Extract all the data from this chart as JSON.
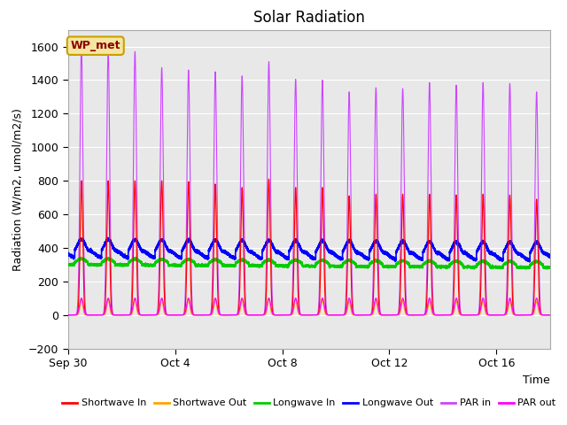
{
  "title": "Solar Radiation",
  "ylabel": "Radiation (W/m2, umol/m2/s)",
  "xlabel": "Time",
  "ylim": [
    -200,
    1700
  ],
  "yticks": [
    -200,
    0,
    200,
    400,
    600,
    800,
    1000,
    1200,
    1400,
    1600
  ],
  "annotation": "WP_met",
  "x_tick_labels": [
    "Sep 30",
    "Oct 4",
    "Oct 8",
    "Oct 12",
    "Oct 16"
  ],
  "x_tick_pos": [
    0,
    4,
    8,
    12,
    16
  ],
  "xlim": [
    0,
    18
  ],
  "colors": {
    "shortwave_in": "#ff0000",
    "shortwave_out": "#ffa500",
    "longwave_in": "#00cc00",
    "longwave_out": "#0000ff",
    "par_in": "#cc44ff",
    "par_out": "#ff00ff"
  },
  "legend": [
    {
      "label": "Shortwave In",
      "color": "#ff0000"
    },
    {
      "label": "Shortwave Out",
      "color": "#ffa500"
    },
    {
      "label": "Longwave In",
      "color": "#00cc00"
    },
    {
      "label": "Longwave Out",
      "color": "#0000ff"
    },
    {
      "label": "PAR in",
      "color": "#cc44ff"
    },
    {
      "label": "PAR out",
      "color": "#ff00ff"
    }
  ],
  "num_days": 18,
  "pts_per_day": 1000,
  "background_color": "#e8e8e8",
  "plot_bg_color": "#e8e8e8",
  "grid_color": "#ffffff",
  "annotation_bg": "#f5e6a0",
  "annotation_edge": "#c8a000",
  "annotation_text_color": "#8B0000"
}
